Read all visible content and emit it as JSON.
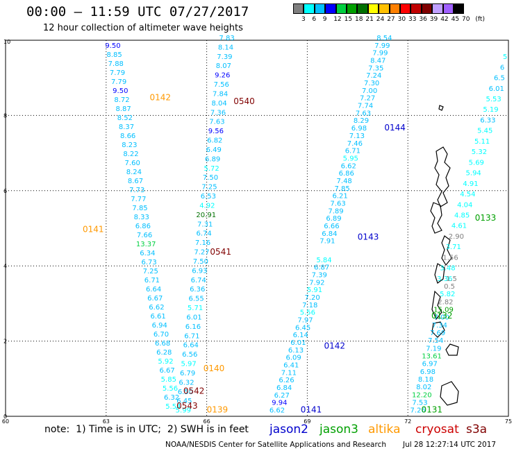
{
  "header": {
    "title": "00:00 – 11:59 UTC 07/27/2017",
    "subtitle": "12 hour collection of altimeter wave heights"
  },
  "colorbar": {
    "labels": [
      "3",
      "6",
      "9",
      "12",
      "15",
      "18",
      "21",
      "24",
      "27",
      "30",
      "33",
      "36",
      "39",
      "42",
      "45",
      "70",
      "(ft)"
    ],
    "colors": [
      "#7f7f7f",
      "#00ffff",
      "#00bfff",
      "#0000ff",
      "#00d040",
      "#00a000",
      "#007000",
      "#ffff00",
      "#ffc000",
      "#ff8000",
      "#ff0000",
      "#c00000",
      "#800000",
      "#c0a0ff",
      "#a060ff",
      "#000000"
    ]
  },
  "footer": {
    "note": "note:  1) Time is in UTC;  2) SWH is in feet",
    "credit": "NOAA/NESDIS Center for Satellite Applications and Research",
    "timestamp": "Jul 28 12:27:14 UTC 2017"
  },
  "legend": [
    {
      "name": "jason2",
      "color": "#0000cc"
    },
    {
      "name": "jason3",
      "color": "#00a000"
    },
    {
      "name": "altika",
      "color": "#ff9900"
    },
    {
      "name": "cryosat",
      "color": "#cc0000"
    },
    {
      "name": "s3a",
      "color": "#800000"
    }
  ],
  "chart_data": {
    "type": "scatter",
    "title": "12 hour collection of altimeter wave heights",
    "xlim": [
      60,
      75
    ],
    "ylim": [
      0,
      10
    ],
    "x_ticks": [
      "60",
      "63",
      "66",
      "69",
      "72",
      "75"
    ],
    "y_ticks": [
      "0",
      "2",
      "4",
      "6",
      "8",
      "10"
    ],
    "grid": true,
    "value_unit": "ft",
    "pass_labels": [
      {
        "label": "0142",
        "x": 64.3,
        "y": 8.4,
        "sat": "altika"
      },
      {
        "label": "0540",
        "x": 66.8,
        "y": 8.3,
        "sat": "s3a"
      },
      {
        "label": "0144",
        "x": 71.3,
        "y": 7.6,
        "sat": "jason2"
      },
      {
        "label": "0141",
        "x": 62.3,
        "y": 4.9,
        "sat": "altika"
      },
      {
        "label": "0541",
        "x": 66.1,
        "y": 4.3,
        "sat": "s3a"
      },
      {
        "label": "0143",
        "x": 70.5,
        "y": 4.7,
        "sat": "jason2"
      },
      {
        "label": "0133",
        "x": 74.0,
        "y": 5.2,
        "sat": "jason3"
      },
      {
        "label": "0132",
        "x": 72.7,
        "y": 2.6,
        "sat": "jason3"
      },
      {
        "label": "0142",
        "x": 69.5,
        "y": 1.8,
        "sat": "jason2"
      },
      {
        "label": "0140",
        "x": 65.9,
        "y": 1.2,
        "sat": "altika"
      },
      {
        "label": "0542",
        "x": 65.3,
        "y": 0.6,
        "sat": "s3a"
      },
      {
        "label": "0543",
        "x": 65.1,
        "y": 0.2,
        "sat": "s3a"
      },
      {
        "label": "0139",
        "x": 66.0,
        "y": 0.1,
        "sat": "altika"
      },
      {
        "label": "0141",
        "x": 68.8,
        "y": 0.1,
        "sat": "jason2"
      },
      {
        "label": "0131",
        "x": 72.4,
        "y": 0.1,
        "sat": "jason3"
      }
    ],
    "tracks": [
      {
        "sat": "altika",
        "x_start": 63.2,
        "y_start": 9.8,
        "x_end": 65.0,
        "y_end": 0.2,
        "values": [
          "9.50",
          "8.85",
          "7.88",
          "7.79",
          "7.79",
          "9.50",
          "8.72",
          "8.87",
          "8.52",
          "8.37",
          "8.66",
          "8.23",
          "8.22",
          "7.60",
          "8.24",
          "8.67",
          "7.73",
          "7.77",
          "7.85",
          "8.33",
          "6.86",
          "7.66",
          "13.37",
          "6.34",
          "6.73",
          "7.25",
          "6.71",
          "6.64",
          "6.67",
          "6.62",
          "6.61",
          "6.94",
          "6.70",
          "6.68",
          "6.28",
          "5.92",
          "6.67",
          "5.85",
          "5.56",
          "6.32",
          "5.54"
        ]
      },
      {
        "sat": "s3a",
        "x_start": 66.6,
        "y_start": 10.0,
        "x_end": 65.3,
        "y_end": 0.1,
        "values": [
          "7.83",
          "8.14",
          "7.39",
          "8.07",
          "9.26",
          "7.56",
          "7.84",
          "8.04",
          "7.36",
          "7.63",
          "9.56",
          "6.82",
          "6.49",
          "6.89",
          "5.72",
          "7.50",
          "7.25",
          "6.53",
          "4.92",
          "20.91",
          "7.31",
          "6.74",
          "7.16",
          "7.27",
          "7.50",
          "6.93",
          "6.74",
          "6.36",
          "6.55",
          "5.71",
          "6.01",
          "6.16",
          "6.71",
          "6.64",
          "6.56",
          "5.97",
          "6.79",
          "6.32",
          "6.50",
          "6.45",
          "5.99"
        ]
      },
      {
        "sat": "jason2",
        "x_start": 71.3,
        "y_start": 10.0,
        "x_end": 69.6,
        "y_end": 4.6,
        "values": [
          "8.54",
          "7.99",
          "7.99",
          "8.47",
          "7.35",
          "7.24",
          "7.30",
          "7.00",
          "7.27",
          "7.74",
          "7.63",
          "8.29",
          "6.98",
          "7.13",
          "7.46",
          "6.71",
          "5.95",
          "6.62",
          "6.86",
          "7.48",
          "7.85",
          "6.21",
          "7.63",
          "7.89",
          "6.89",
          "6.66",
          "6.84",
          "7.91"
        ]
      },
      {
        "sat": "jason2",
        "x_start": 69.5,
        "y_start": 4.1,
        "x_end": 68.1,
        "y_end": 0.1,
        "values": [
          "5.84",
          "6.87",
          "7.39",
          "7.92",
          "5.91",
          "7.20",
          "7.18",
          "5.56",
          "7.97",
          "6.45",
          "6.14",
          "6.01",
          "6.13",
          "6.09",
          "6.41",
          "7.11",
          "6.26",
          "6.84",
          "6.27",
          "9.94",
          "6.62"
        ]
      },
      {
        "sat": "jason3",
        "x_start": 74.9,
        "y_start": 9.5,
        "x_end": 73.1,
        "y_end": 3.6,
        "values": [
          "5",
          "6",
          "6.5",
          "6.01",
          "5.53",
          "5.19",
          "6.33",
          "5.45",
          "5.11",
          "5.32",
          "5.69",
          "5.94",
          "4.91",
          "4.54",
          "4.04",
          "4.85",
          "4.61",
          "2.90",
          "3.71",
          "1.56",
          "3.48",
          "3.36"
        ]
      },
      {
        "sat": "jason3",
        "x_start": 73.3,
        "y_start": 3.6,
        "x_end": 72.3,
        "y_end": 0.1,
        "values": [
          "1.5",
          "0.5",
          "5.82",
          "2.82",
          "15.09",
          "7.00",
          "7.34",
          "7.69",
          "7.54",
          "7.19",
          "13.61",
          "6.97",
          "6.98",
          "8.18",
          "8.02",
          "12.20",
          "7.53",
          "7.26"
        ]
      }
    ]
  }
}
